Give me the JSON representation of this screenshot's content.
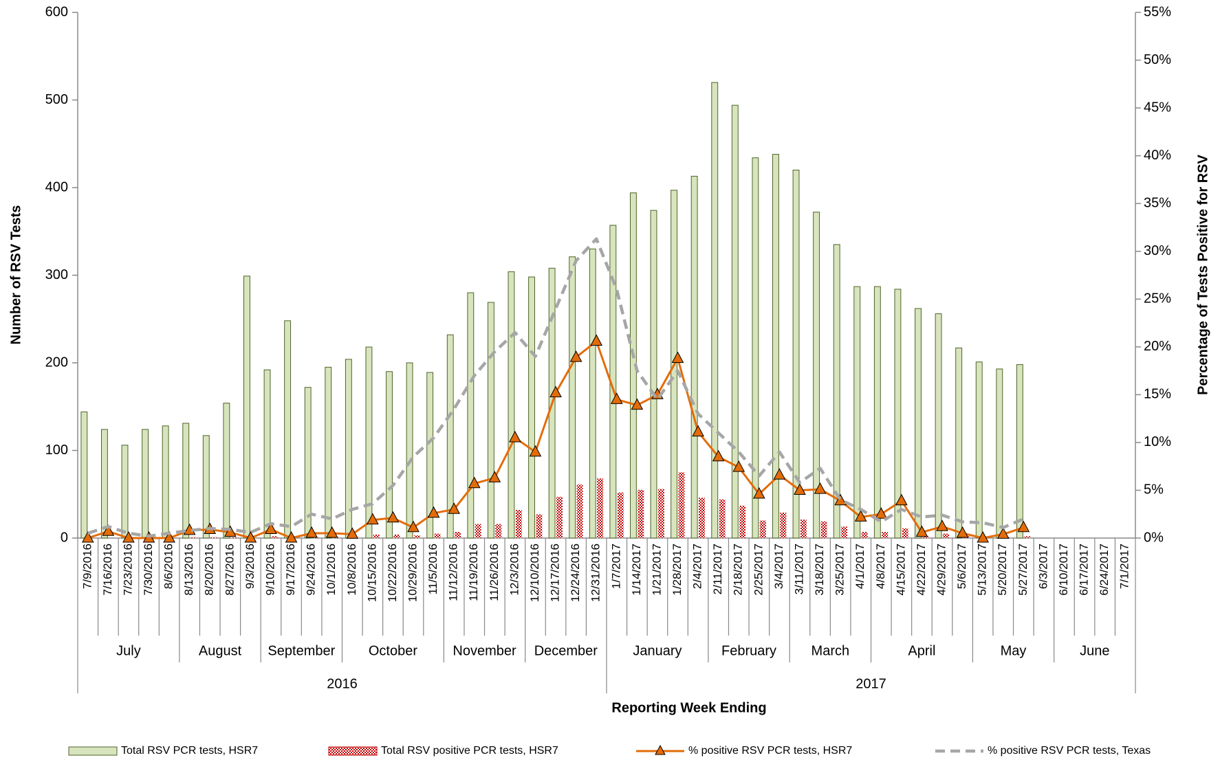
{
  "chart_data": {
    "type": "bar",
    "x_label": "Reporting Week Ending",
    "y_label": "Number of RSV Tests",
    "y2_label": "Percentage of Tests Positive for RSV",
    "categories": [
      "7/9/2016",
      "7/16/2016",
      "7/23/2016",
      "7/30/2016",
      "8/6/2016",
      "8/13/2016",
      "8/20/2016",
      "8/27/2016",
      "9/3/2016",
      "9/10/2016",
      "9/17/2016",
      "9/24/2016",
      "10/1/2016",
      "10/8/2016",
      "10/15/2016",
      "10/22/2016",
      "10/29/2016",
      "11/5/2016",
      "11/12/2016",
      "11/19/2016",
      "11/26/2016",
      "12/3/2016",
      "12/10/2016",
      "12/17/2016",
      "12/24/2016",
      "12/31/2016",
      "1/7/2017",
      "1/14/2017",
      "1/21/2017",
      "1/28/2017",
      "2/4/2017",
      "2/11/2017",
      "2/18/2017",
      "2/25/2017",
      "3/4/2017",
      "3/11/2017",
      "3/18/2017",
      "3/25/2017",
      "4/1/2017",
      "4/8/2017",
      "4/15/2017",
      "4/22/2017",
      "4/29/2017",
      "5/6/2017",
      "5/13/2017",
      "5/20/2017",
      "5/27/2017",
      "6/3/2017",
      "6/10/2017",
      "6/17/2017",
      "6/24/2017",
      "7/1/2017"
    ],
    "months": [
      "July",
      "August",
      "September",
      "October",
      "November",
      "December",
      "January",
      "February",
      "March",
      "April",
      "May",
      "June"
    ],
    "years": [
      "2016",
      "2017"
    ],
    "series": [
      {
        "name": "Total RSV PCR tests, HSR7",
        "type": "bar",
        "color": "#d7e4bd",
        "edge": "#4f6228",
        "values": [
          144,
          124,
          106,
          124,
          128,
          131,
          117,
          154,
          299,
          192,
          248,
          172,
          195,
          204,
          218,
          190,
          200,
          189,
          232,
          280,
          269,
          304,
          298,
          308,
          321,
          330,
          357,
          394,
          374,
          397,
          413,
          520,
          494,
          434,
          438,
          420,
          372,
          335,
          287,
          287,
          284,
          262,
          256,
          217,
          201,
          193,
          198,
          null,
          null,
          null,
          null,
          null
        ]
      },
      {
        "name": "Total RSV positive PCR tests, HSR7",
        "type": "bar",
        "color": "#c00000",
        "pattern": "checker",
        "values": [
          0,
          0,
          0,
          0,
          0,
          1,
          1,
          1,
          0,
          2,
          0,
          1,
          1,
          1,
          4,
          4,
          3,
          5,
          7,
          16,
          16,
          32,
          27,
          47,
          61,
          68,
          52,
          55,
          56,
          75,
          46,
          44,
          37,
          20,
          29,
          21,
          19,
          13,
          7,
          7,
          11,
          2,
          5,
          2,
          1,
          1,
          2,
          null,
          null,
          null,
          null,
          null
        ]
      },
      {
        "name": "% positive RSV PCR tests, HSR7",
        "type": "line",
        "axis": "y2",
        "color": "#e36c09",
        "marker": "triangle",
        "values": [
          0,
          0.7,
          0,
          0,
          0,
          0.8,
          0.9,
          0.6,
          0,
          0.9,
          0,
          0.5,
          0.5,
          0.4,
          1.9,
          2.1,
          1.1,
          2.6,
          3.0,
          5.7,
          6.3,
          10.5,
          9.0,
          15.2,
          18.9,
          20.6,
          14.5,
          13.9,
          15.0,
          18.8,
          11.1,
          8.5,
          7.4,
          4.6,
          6.6,
          5.0,
          5.1,
          3.9,
          2.2,
          2.5,
          3.9,
          0.6,
          1.2,
          0.5,
          0,
          0.4,
          1.1,
          null,
          null,
          null,
          null,
          null
        ]
      },
      {
        "name": "% positive RSV PCR  tests, Texas",
        "type": "line",
        "axis": "y2",
        "color": "#a6a6a6",
        "dashed": true,
        "values": [
          0.5,
          1.2,
          0.5,
          0.2,
          0.5,
          0.8,
          1.0,
          0.9,
          0.6,
          1.5,
          1.2,
          2.5,
          2.0,
          3.0,
          3.6,
          5.5,
          8.5,
          10.5,
          13.5,
          17,
          19.5,
          21.5,
          19,
          24,
          29,
          31.3,
          26,
          17.5,
          14.5,
          17.5,
          13,
          11,
          9,
          6.5,
          9,
          5.8,
          7.3,
          4,
          3,
          1.7,
          3,
          2.2,
          2.4,
          1.7,
          1.6,
          1.1,
          2.0,
          null,
          null,
          null,
          null,
          null
        ]
      }
    ],
    "ylim": [
      0,
      600
    ],
    "yticks": [
      0,
      100,
      200,
      300,
      400,
      500,
      600
    ],
    "y2lim": [
      0,
      55
    ],
    "y2ticks": [
      {
        "value": 0,
        "label": "0%"
      },
      {
        "value": 5,
        "label": "5%"
      },
      {
        "value": 10,
        "label": "10%"
      },
      {
        "value": 15,
        "label": "15%"
      },
      {
        "value": 20,
        "label": "20%"
      },
      {
        "value": 25,
        "label": "25%"
      },
      {
        "value": 30,
        "label": "30%"
      },
      {
        "value": 35,
        "label": "35%"
      },
      {
        "value": 40,
        "label": "40%"
      },
      {
        "value": 45,
        "label": "45%"
      },
      {
        "value": 50,
        "label": "50%"
      },
      {
        "value": 55,
        "label": "55%"
      }
    ]
  }
}
